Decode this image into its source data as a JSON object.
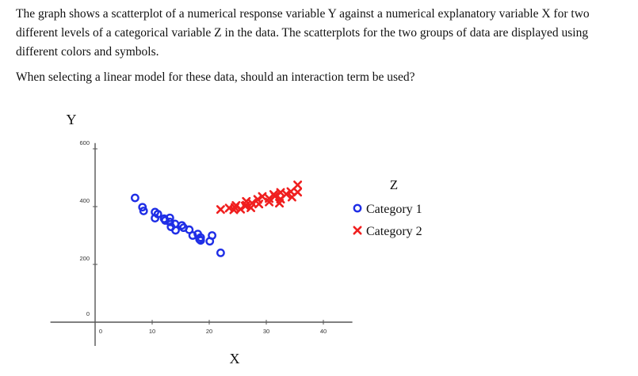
{
  "question": {
    "paragraph1": "The graph shows a scatterplot of a numerical response variable Y against a numerical explanatory variable X for two different levels of a categorical variable Z in the data. The scatterplots for the two groups of data are displayed using different colors and symbols.",
    "paragraph2": "When selecting a linear model for these data, should an interaction term be used?"
  },
  "colors": {
    "category1": "#1f2ee6",
    "category2": "#f01f1f",
    "axis": "#555555"
  },
  "chart_data": {
    "type": "scatter",
    "xlabel": "X",
    "ylabel": "Y",
    "xlim": [
      -2,
      43
    ],
    "ylim": [
      -15,
      620
    ],
    "x_ticks": [
      0,
      10,
      20,
      30,
      40
    ],
    "y_ticks": [
      0,
      200,
      400,
      600
    ],
    "grid": false,
    "legend_title": "Z",
    "legend_position": "right",
    "series": [
      {
        "name": "Category 1",
        "marker": "circle",
        "points": [
          [
            7,
            430
          ],
          [
            8.3,
            398
          ],
          [
            8.5,
            385
          ],
          [
            10.5,
            381
          ],
          [
            11,
            374
          ],
          [
            10.5,
            360
          ],
          [
            12.1,
            358
          ],
          [
            12.3,
            352
          ],
          [
            13.1,
            361
          ],
          [
            13.1,
            347
          ],
          [
            14,
            340
          ],
          [
            13.3,
            330
          ],
          [
            14.1,
            318
          ],
          [
            15.2,
            335
          ],
          [
            15.5,
            327
          ],
          [
            16.5,
            320
          ],
          [
            17.1,
            300
          ],
          [
            18,
            305
          ],
          [
            18.3,
            287
          ],
          [
            18.5,
            293
          ],
          [
            18.5,
            283
          ],
          [
            20.5,
            300
          ],
          [
            20.1,
            280
          ],
          [
            22,
            240
          ]
        ]
      },
      {
        "name": "Category 2",
        "marker": "x",
        "points": [
          [
            22,
            390
          ],
          [
            23.5,
            395
          ],
          [
            24.3,
            389
          ],
          [
            24.5,
            397
          ],
          [
            24.7,
            404
          ],
          [
            25.5,
            391
          ],
          [
            26.3,
            402
          ],
          [
            26.5,
            405
          ],
          [
            26.5,
            418
          ],
          [
            27.3,
            396
          ],
          [
            27.5,
            412
          ],
          [
            28.5,
            425
          ],
          [
            28.7,
            409
          ],
          [
            29.3,
            435
          ],
          [
            30.5,
            428
          ],
          [
            30.5,
            416
          ],
          [
            31.3,
            442
          ],
          [
            31.5,
            436
          ],
          [
            32.3,
            412
          ],
          [
            32.5,
            426
          ],
          [
            32.5,
            449
          ],
          [
            33.5,
            443
          ],
          [
            34.3,
            452
          ],
          [
            34.5,
            433
          ],
          [
            35.5,
            450
          ],
          [
            35.5,
            475
          ]
        ]
      }
    ]
  }
}
